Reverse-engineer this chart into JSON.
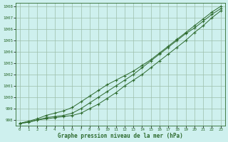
{
  "x": [
    0,
    1,
    2,
    3,
    4,
    5,
    6,
    7,
    8,
    9,
    10,
    11,
    12,
    13,
    14,
    15,
    16,
    17,
    18,
    19,
    20,
    21,
    22,
    23
  ],
  "line1": [
    997.7,
    997.8,
    998.0,
    998.1,
    998.2,
    998.3,
    998.4,
    998.6,
    999.0,
    999.4,
    999.9,
    1000.4,
    1001.0,
    1001.5,
    1002.0,
    1002.6,
    1003.2,
    1003.8,
    1004.4,
    1005.0,
    1005.7,
    1006.3,
    1007.0,
    1007.6
  ],
  "line2": [
    997.7,
    997.8,
    998.0,
    998.2,
    998.3,
    998.4,
    998.6,
    999.0,
    999.5,
    1000.0,
    1000.5,
    1001.0,
    1001.5,
    1002.0,
    1002.6,
    1003.2,
    1003.8,
    1004.4,
    1005.0,
    1005.6,
    1006.1,
    1006.7,
    1007.3,
    1007.8
  ],
  "line3": [
    997.7,
    997.9,
    998.1,
    998.4,
    998.6,
    998.8,
    999.1,
    999.6,
    1000.1,
    1000.6,
    1001.1,
    1001.5,
    1001.9,
    1002.3,
    1002.8,
    1003.3,
    1003.9,
    1004.5,
    1005.1,
    1005.7,
    1006.3,
    1006.9,
    1007.5,
    1008.0
  ],
  "bg_color": "#cef0ee",
  "line_color": "#2d6a2d",
  "grid_color": "#9dbfaa",
  "xlabel": "Graphe pression niveau de la mer (hPa)",
  "ylim": [
    997.5,
    1008.3
  ],
  "xlim_min": -0.5,
  "xlim_max": 23.5,
  "yticks": [
    998,
    999,
    1000,
    1001,
    1002,
    1003,
    1004,
    1005,
    1006,
    1007,
    1008
  ],
  "xticks": [
    0,
    1,
    2,
    3,
    4,
    5,
    6,
    7,
    8,
    9,
    10,
    11,
    12,
    13,
    14,
    15,
    16,
    17,
    18,
    19,
    20,
    21,
    22,
    23
  ]
}
